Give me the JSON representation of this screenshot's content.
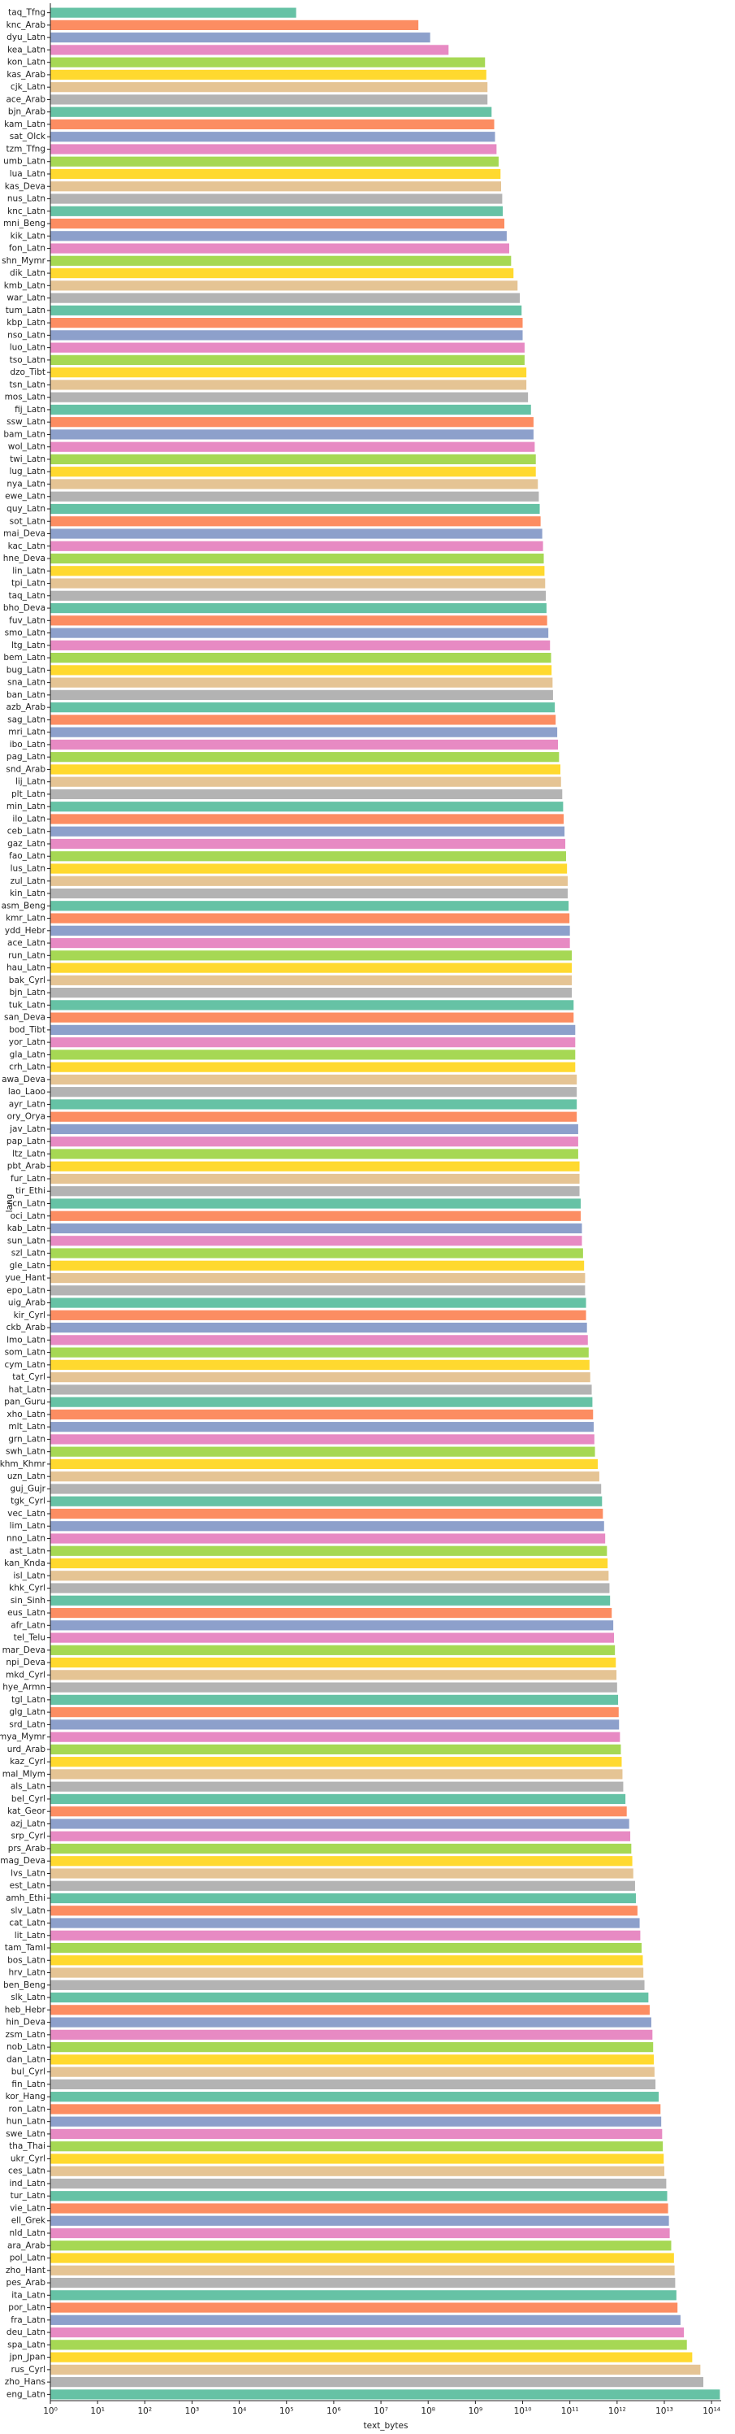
{
  "chart_data": {
    "type": "bar",
    "orientation": "horizontal",
    "x_label": "text_bytes",
    "y_label": "lang",
    "xscale": "log",
    "palette": [
      "#66c2a5",
      "#fc8d62",
      "#8da0cb",
      "#e78ac3",
      "#a6d854",
      "#ffd92f",
      "#e5c494",
      "#b3b3b3"
    ],
    "xlim": [
      1,
      160000000000000.0
    ],
    "xticks": [
      {
        "value": 1,
        "label": "10⁰"
      },
      {
        "value": 10,
        "label": "10¹"
      },
      {
        "value": 100,
        "label": "10²"
      },
      {
        "value": 1000,
        "label": "10³"
      },
      {
        "value": 10000.0,
        "label": "10⁴"
      },
      {
        "value": 100000.0,
        "label": "10⁵"
      },
      {
        "value": 1000000.0,
        "label": "10⁶"
      },
      {
        "value": 10000000.0,
        "label": "10⁷"
      },
      {
        "value": 100000000.0,
        "label": "10⁸"
      },
      {
        "value": 1000000000.0,
        "label": "10⁹"
      },
      {
        "value": 10000000000.0,
        "label": "10¹⁰"
      },
      {
        "value": 100000000000.0,
        "label": "10¹¹"
      },
      {
        "value": 1000000000000.0,
        "label": "10¹²"
      },
      {
        "value": 10000000000000.0,
        "label": "10¹³"
      },
      {
        "value": 100000000000000.0,
        "label": "10¹⁴"
      }
    ],
    "categories": [
      "taq_Tfng",
      "knc_Arab",
      "dyu_Latn",
      "kea_Latn",
      "kon_Latn",
      "kas_Arab",
      "cjk_Latn",
      "ace_Arab",
      "bjn_Arab",
      "kam_Latn",
      "sat_Olck",
      "tzm_Tfng",
      "umb_Latn",
      "lua_Latn",
      "kas_Deva",
      "nus_Latn",
      "knc_Latn",
      "mni_Beng",
      "kik_Latn",
      "fon_Latn",
      "shn_Mymr",
      "dik_Latn",
      "kmb_Latn",
      "war_Latn",
      "tum_Latn",
      "kbp_Latn",
      "nso_Latn",
      "luo_Latn",
      "tso_Latn",
      "dzo_Tibt",
      "tsn_Latn",
      "mos_Latn",
      "fij_Latn",
      "ssw_Latn",
      "bam_Latn",
      "wol_Latn",
      "twi_Latn",
      "lug_Latn",
      "nya_Latn",
      "ewe_Latn",
      "quy_Latn",
      "sot_Latn",
      "mai_Deva",
      "kac_Latn",
      "hne_Deva",
      "lin_Latn",
      "tpi_Latn",
      "taq_Latn",
      "bho_Deva",
      "fuv_Latn",
      "smo_Latn",
      "ltg_Latn",
      "bem_Latn",
      "bug_Latn",
      "sna_Latn",
      "ban_Latn",
      "azb_Arab",
      "sag_Latn",
      "mri_Latn",
      "ibo_Latn",
      "pag_Latn",
      "snd_Arab",
      "lij_Latn",
      "plt_Latn",
      "min_Latn",
      "ilo_Latn",
      "ceb_Latn",
      "gaz_Latn",
      "fao_Latn",
      "lus_Latn",
      "zul_Latn",
      "kin_Latn",
      "asm_Beng",
      "kmr_Latn",
      "ydd_Hebr",
      "ace_Latn",
      "run_Latn",
      "hau_Latn",
      "bak_Cyrl",
      "bjn_Latn",
      "tuk_Latn",
      "san_Deva",
      "bod_Tibt",
      "yor_Latn",
      "gla_Latn",
      "crh_Latn",
      "awa_Deva",
      "lao_Laoo",
      "ayr_Latn",
      "ory_Orya",
      "jav_Latn",
      "pap_Latn",
      "ltz_Latn",
      "pbt_Arab",
      "fur_Latn",
      "tir_Ethi",
      "scn_Latn",
      "oci_Latn",
      "kab_Latn",
      "sun_Latn",
      "szl_Latn",
      "gle_Latn",
      "yue_Hant",
      "epo_Latn",
      "uig_Arab",
      "kir_Cyrl",
      "ckb_Arab",
      "lmo_Latn",
      "som_Latn",
      "cym_Latn",
      "tat_Cyrl",
      "hat_Latn",
      "pan_Guru",
      "xho_Latn",
      "mlt_Latn",
      "grn_Latn",
      "swh_Latn",
      "khm_Khmr",
      "uzn_Latn",
      "guj_Gujr",
      "tgk_Cyrl",
      "vec_Latn",
      "lim_Latn",
      "nno_Latn",
      "ast_Latn",
      "kan_Knda",
      "isl_Latn",
      "khk_Cyrl",
      "sin_Sinh",
      "eus_Latn",
      "afr_Latn",
      "tel_Telu",
      "mar_Deva",
      "npi_Deva",
      "mkd_Cyrl",
      "hye_Armn",
      "tgl_Latn",
      "glg_Latn",
      "srd_Latn",
      "mya_Mymr",
      "urd_Arab",
      "kaz_Cyrl",
      "mal_Mlym",
      "als_Latn",
      "bel_Cyrl",
      "kat_Geor",
      "azj_Latn",
      "srp_Cyrl",
      "prs_Arab",
      "mag_Deva",
      "lvs_Latn",
      "est_Latn",
      "amh_Ethi",
      "slv_Latn",
      "cat_Latn",
      "lit_Latn",
      "tam_Taml",
      "bos_Latn",
      "hrv_Latn",
      "ben_Beng",
      "slk_Latn",
      "heb_Hebr",
      "hin_Deva",
      "zsm_Latn",
      "nob_Latn",
      "dan_Latn",
      "bul_Cyrl",
      "fin_Latn",
      "kor_Hang",
      "ron_Latn",
      "hun_Latn",
      "swe_Latn",
      "tha_Thai",
      "ukr_Cyrl",
      "ces_Latn",
      "ind_Latn",
      "tur_Latn",
      "vie_Latn",
      "ell_Grek",
      "nld_Latn",
      "ara_Arab",
      "pol_Latn",
      "zho_Hant",
      "pes_Arab",
      "ita_Latn",
      "por_Latn",
      "fra_Latn",
      "deu_Latn",
      "spa_Latn",
      "jpn_Jpan",
      "rus_Cyrl",
      "zho_Hans",
      "eng_Latn"
    ],
    "values": [
      160000.0,
      62000000.0,
      110000000.0,
      270000000.0,
      1600000000.0,
      1700000000.0,
      1800000000.0,
      1800000000.0,
      2200000000.0,
      2500000000.0,
      2600000000.0,
      2800000000.0,
      3100000000.0,
      3400000000.0,
      3500000000.0,
      3700000000.0,
      3800000000.0,
      4100000000.0,
      4600000000.0,
      5200000000.0,
      5700000000.0,
      6400000000.0,
      7800000000.0,
      8700000000.0,
      9500000000.0,
      10000000000.0,
      10000000000.0,
      11000000000.0,
      11000000000.0,
      12000000000.0,
      12000000000.0,
      13000000000.0,
      15000000000.0,
      17000000000.0,
      17000000000.0,
      18000000000.0,
      19000000000.0,
      19000000000.0,
      21000000000.0,
      22000000000.0,
      23000000000.0,
      24000000000.0,
      26000000000.0,
      27000000000.0,
      28000000000.0,
      29000000000.0,
      30000000000.0,
      31000000000.0,
      32000000000.0,
      33000000000.0,
      35000000000.0,
      38000000000.0,
      40000000000.0,
      41000000000.0,
      43000000000.0,
      44000000000.0,
      48000000000.0,
      50000000000.0,
      54000000000.0,
      56000000000.0,
      59000000000.0,
      63000000000.0,
      65000000000.0,
      69000000000.0,
      72000000000.0,
      74000000000.0,
      77000000000.0,
      80000000000.0,
      83000000000.0,
      87000000000.0,
      90000000000.0,
      90000000000.0,
      94000000000.0,
      98000000000.0,
      100000000000.0,
      100000000000.0,
      110000000000.0,
      110000000000.0,
      110000000000.0,
      110000000000.0,
      120000000000.0,
      120000000000.0,
      130000000000.0,
      130000000000.0,
      130000000000.0,
      130000000000.0,
      140000000000.0,
      140000000000.0,
      140000000000.0,
      140000000000.0,
      150000000000.0,
      150000000000.0,
      150000000000.0,
      160000000000.0,
      160000000000.0,
      160000000000.0,
      170000000000.0,
      170000000000.0,
      180000000000.0,
      180000000000.0,
      190000000000.0,
      200000000000.0,
      210000000000.0,
      210000000000.0,
      220000000000.0,
      220000000000.0,
      230000000000.0,
      240000000000.0,
      250000000000.0,
      260000000000.0,
      270000000000.0,
      290000000000.0,
      300000000000.0,
      310000000000.0,
      320000000000.0,
      330000000000.0,
      340000000000.0,
      390000000000.0,
      420000000000.0,
      460000000000.0,
      480000000000.0,
      500000000000.0,
      530000000000.0,
      560000000000.0,
      610000000000.0,
      630000000000.0,
      660000000000.0,
      690000000000.0,
      710000000000.0,
      770000000000.0,
      830000000000.0,
      860000000000.0,
      900000000000.0,
      940000000000.0,
      970000000000.0,
      1000000000000.0,
      1050000000000.0,
      1080000000000.0,
      1100000000000.0,
      1150000000000.0,
      1200000000000.0,
      1250000000000.0,
      1300000000000.0,
      1350000000000.0,
      1500000000000.0,
      1600000000000.0,
      1800000000000.0,
      1900000000000.0,
      2000000000000.0,
      2100000000000.0,
      2200000000000.0,
      2400000000000.0,
      2500000000000.0,
      2700000000000.0,
      3000000000000.0,
      3100000000000.0,
      3300000000000.0,
      3500000000000.0,
      3600000000000.0,
      3800000000000.0,
      4600000000000.0,
      4900000000000.0,
      5300000000000.0,
      5600000000000.0,
      5800000000000.0,
      6000000000000.0,
      6200000000000.0,
      6500000000000.0,
      7600000000000.0,
      8300000000000.0,
      8600000000000.0,
      9000000000000.0,
      9300000000000.0,
      9700000000000.0,
      10000000000000.0,
      11000000000000.0,
      11500000000000.0,
      12000000000000.0,
      12500000000000.0,
      13000000000000.0,
      14000000000000.0,
      16000000000000.0,
      16500000000000.0,
      17000000000000.0,
      18000000000000.0,
      19000000000000.0,
      22000000000000.0,
      26000000000000.0,
      30000000000000.0,
      39000000000000.0,
      58000000000000.0,
      67000000000000.0,
      150000000000000.0
    ]
  }
}
